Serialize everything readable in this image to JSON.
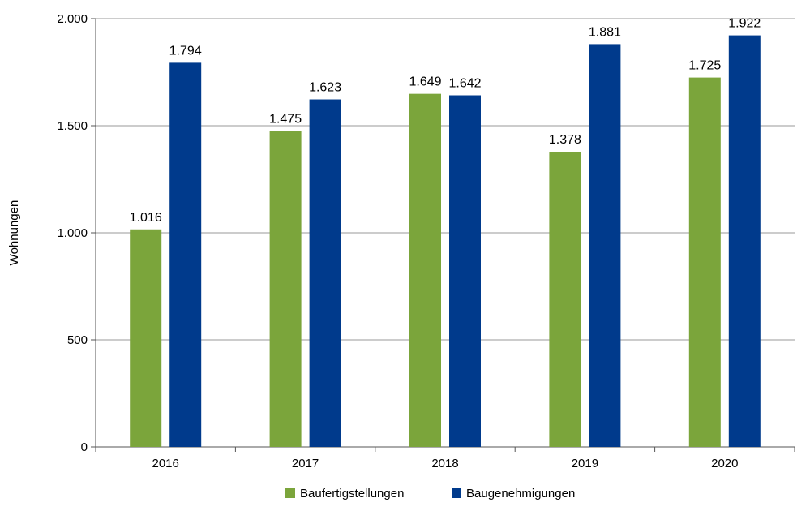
{
  "chart_data": {
    "type": "bar",
    "categories": [
      "2016",
      "2017",
      "2018",
      "2019",
      "2020"
    ],
    "series": [
      {
        "name": "Baufertigstellungen",
        "color": "#7BA53B",
        "values": [
          1016,
          1475,
          1649,
          1378,
          1725
        ],
        "labels": [
          "1.016",
          "1.475",
          "1.649",
          "1.378",
          "1.725"
        ]
      },
      {
        "name": "Baugenehmigungen",
        "color": "#003A8C",
        "values": [
          1794,
          1623,
          1642,
          1881,
          1922
        ],
        "labels": [
          "1.794",
          "1.623",
          "1.642",
          "1.881",
          "1.922"
        ]
      }
    ],
    "ylabel": "Wohnungen",
    "ylim": [
      0,
      2000
    ],
    "yticks": [
      0,
      500,
      1000,
      1500,
      2000
    ],
    "ytick_labels": [
      "0",
      "500",
      "1.000",
      "1.500",
      "2.000"
    ],
    "grid": true,
    "legend_position": "bottom-center"
  }
}
